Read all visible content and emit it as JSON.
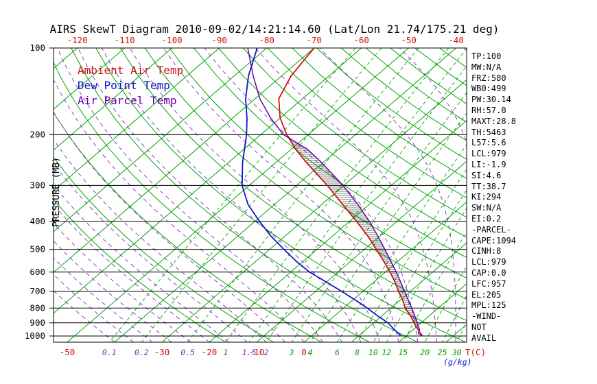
{
  "title": "AIRS SkewT Diagram 2010-09-02/14:21:14.60 (Lat/Lon 21.74/175.21 deg)",
  "legend": [
    {
      "label": "Ambient Air Temp",
      "color": "#cc1111"
    },
    {
      "label": "Dew Point Temp",
      "color": "#1111cc"
    },
    {
      "label": "Air Parcel Temp",
      "color": "#6600aa"
    }
  ],
  "stats": [
    "TP:100",
    "MW:N/A",
    "FRZ:580",
    "WB0:499",
    "PW:30.14",
    "RH:57.0",
    "MAXT:28.8",
    "TH:5463",
    "L57:5.6",
    "LCL:979",
    "LI:-1.9",
    "SI:4.6",
    "TT:38.7",
    "KI:294",
    "SW:N/A",
    "EI:0.2",
    "-PARCEL-",
    "CAPE:1094",
    "CINH:8",
    "LCL:979",
    "CAP:0.0",
    "LFC:957",
    "EL:205",
    "MPL:125",
    "-WIND-",
    "NOT",
    "AVAIL"
  ],
  "chart_data": {
    "type": "line",
    "variant": "skew-t-log-p",
    "title": "AIRS SkewT Diagram 2010-09-02/14:21:14.60 (Lat/Lon 21.74/175.21 deg)",
    "xlabel": "T(C)",
    "secondary_xlabel": "(g/kg)",
    "ylabel": "PRESSURE (MB)",
    "axis": {
      "pressure_range_hpa": [
        100,
        1050
      ],
      "log_scale": true
    },
    "pressure_ticks": [
      100,
      200,
      300,
      400,
      500,
      600,
      700,
      800,
      900,
      1000
    ],
    "top_temperature_ticks": [
      -120,
      -110,
      -100,
      -90,
      -80,
      -70,
      -60,
      -50,
      -40
    ],
    "bottom_temperature_ticks": [
      -50,
      -30,
      -20,
      -10,
      0
    ],
    "mixing_ratio_lines_g_kg": [
      0.1,
      0.2,
      0.5,
      1,
      1.5,
      2,
      3,
      4,
      6,
      8,
      10,
      12,
      15,
      20,
      25,
      30
    ],
    "isotherm_lines_C": {
      "min": -120,
      "max": 40,
      "step": 10
    },
    "dry_adiabat_lines_K": {
      "min": 253,
      "max": 453,
      "step": 10
    },
    "moist_adiabat_surface_C": {
      "min": -40,
      "max": 36,
      "step": 4
    },
    "colors": {
      "grid_green": "#00a400",
      "adiabat_purple": "#7a2fbf",
      "tick_red": "#cc1111",
      "gkg_blue": "#1111cc"
    },
    "series": [
      {
        "name": "Ambient Air Temp",
        "color": "#cc1111",
        "points": [
          [
            1000,
            23.5
          ],
          [
            950,
            21
          ],
          [
            900,
            18.5
          ],
          [
            850,
            16
          ],
          [
            800,
            13
          ],
          [
            750,
            10.5
          ],
          [
            700,
            7.5
          ],
          [
            650,
            4.5
          ],
          [
            600,
            1
          ],
          [
            550,
            -3
          ],
          [
            500,
            -7.5
          ],
          [
            450,
            -12.5
          ],
          [
            400,
            -18.5
          ],
          [
            350,
            -25.5
          ],
          [
            300,
            -33.5
          ],
          [
            250,
            -43.5
          ],
          [
            225,
            -49
          ],
          [
            200,
            -54.5
          ],
          [
            175,
            -60
          ],
          [
            150,
            -65
          ],
          [
            125,
            -68
          ],
          [
            100,
            -70
          ]
        ]
      },
      {
        "name": "Dew Point Temp",
        "color": "#1111cc",
        "points": [
          [
            1000,
            19
          ],
          [
            950,
            16
          ],
          [
            900,
            13
          ],
          [
            850,
            9
          ],
          [
            800,
            5
          ],
          [
            750,
            0.5
          ],
          [
            700,
            -4.5
          ],
          [
            650,
            -10
          ],
          [
            600,
            -16
          ],
          [
            550,
            -21.5
          ],
          [
            500,
            -27
          ],
          [
            450,
            -33
          ],
          [
            400,
            -39
          ],
          [
            350,
            -45.5
          ],
          [
            300,
            -51.5
          ],
          [
            250,
            -57
          ],
          [
            200,
            -63
          ],
          [
            175,
            -67
          ],
          [
            150,
            -72
          ],
          [
            125,
            -77
          ],
          [
            100,
            -82
          ]
        ]
      },
      {
        "name": "Air Parcel Temp",
        "color": "#6600aa",
        "points": [
          [
            1000,
            23.5
          ],
          [
            979,
            22
          ],
          [
            950,
            21.3
          ],
          [
            900,
            19.2
          ],
          [
            850,
            16.9
          ],
          [
            800,
            14.4
          ],
          [
            750,
            11.7
          ],
          [
            700,
            8.8
          ],
          [
            650,
            5.7
          ],
          [
            600,
            2.3
          ],
          [
            550,
            -1.5
          ],
          [
            500,
            -5.7
          ],
          [
            450,
            -10.4
          ],
          [
            400,
            -15.8
          ],
          [
            350,
            -22.3
          ],
          [
            300,
            -30.2
          ],
          [
            250,
            -40.3
          ],
          [
            225,
            -46.5
          ],
          [
            200,
            -55.2
          ],
          [
            175,
            -62
          ],
          [
            150,
            -69
          ],
          [
            125,
            -76
          ],
          [
            100,
            -84
          ]
        ]
      }
    ],
    "hatch": {
      "between": [
        "Ambient Air Temp",
        "Air Parcel Temp"
      ],
      "from_hpa": 956,
      "to_hpa": 208
    }
  }
}
